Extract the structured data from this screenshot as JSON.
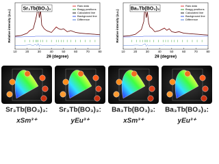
{
  "chart_data": [
    {
      "type": "line",
      "title": "Sr₃Tb(BO₃)₃",
      "x_label": "2θ (degree)",
      "y_label": "Relative intensity (a.u.)",
      "xlim": [
        10,
        80
      ],
      "xticks": [
        10,
        20,
        30,
        40,
        50,
        60,
        70,
        80
      ],
      "ylim": [
        -0.25,
        1
      ],
      "x": [
        10,
        15,
        20,
        22,
        25,
        27,
        28,
        29,
        30,
        31,
        32,
        34,
        36,
        40,
        44,
        46,
        48,
        50,
        53,
        56,
        60,
        64,
        68,
        72,
        76,
        80
      ],
      "series": [
        {
          "name": "Raw data",
          "color": "#e03030",
          "values": [
            0.1,
            0.12,
            0.18,
            0.25,
            0.3,
            0.55,
            0.7,
            0.95,
            0.6,
            0.8,
            0.4,
            0.3,
            0.25,
            0.2,
            0.35,
            0.3,
            0.28,
            0.3,
            0.22,
            0.25,
            0.2,
            0.18,
            0.17,
            0.16,
            0.15,
            0.14
          ]
        },
        {
          "name": "Calculated line",
          "color": "#111111",
          "values": [
            0.1,
            0.12,
            0.18,
            0.24,
            0.3,
            0.54,
            0.7,
            0.93,
            0.6,
            0.79,
            0.4,
            0.3,
            0.25,
            0.2,
            0.34,
            0.3,
            0.28,
            0.3,
            0.22,
            0.25,
            0.2,
            0.18,
            0.17,
            0.16,
            0.15,
            0.14
          ]
        },
        {
          "name": "Background line",
          "color": "#3050e0",
          "values": [
            0.08,
            0.08,
            0.09,
            0.09,
            0.09,
            0.1,
            0.1,
            0.1,
            0.1,
            0.1,
            0.1,
            0.1,
            0.1,
            0.1,
            0.1,
            0.1,
            0.1,
            0.1,
            0.1,
            0.1,
            0.1,
            0.1,
            0.1,
            0.1,
            0.1,
            0.1
          ]
        },
        {
          "name": "Difference",
          "color": "#4a7ad8",
          "values": [
            -0.15,
            -0.15,
            -0.14,
            -0.13,
            -0.15,
            -0.12,
            -0.16,
            -0.1,
            -0.17,
            -0.13,
            -0.15,
            -0.15,
            -0.15,
            -0.15,
            -0.14,
            -0.15,
            -0.15,
            -0.15,
            -0.15,
            -0.15,
            -0.15,
            -0.15,
            -0.15,
            -0.15,
            -0.15,
            -0.15
          ]
        }
      ],
      "bragg": {
        "name": "Bragg positions",
        "color": "#2a9a2a",
        "x": [
          18,
          22,
          25,
          27,
          28,
          29,
          31,
          33,
          36,
          40,
          44,
          46,
          48,
          50,
          53,
          56,
          60,
          64,
          68,
          72,
          76
        ]
      }
    },
    {
      "type": "line",
      "title": "Ba₃Tb(BO₃)₃",
      "x_label": "2θ (degree)",
      "y_label": "Relative intensity (a.u.)",
      "xlim": [
        10,
        80
      ],
      "xticks": [
        10,
        20,
        30,
        40,
        50,
        60,
        70,
        80
      ],
      "ylim": [
        -0.25,
        1
      ],
      "x": [
        10,
        15,
        20,
        22,
        25,
        27,
        28,
        29,
        30,
        31,
        32,
        34,
        36,
        40,
        44,
        46,
        48,
        50,
        53,
        56,
        60,
        64,
        68,
        72,
        76,
        80
      ],
      "series": [
        {
          "name": "Raw data",
          "color": "#e03030",
          "values": [
            0.1,
            0.11,
            0.15,
            0.2,
            0.28,
            0.5,
            0.95,
            0.6,
            0.75,
            0.45,
            0.35,
            0.3,
            0.22,
            0.25,
            0.32,
            0.26,
            0.3,
            0.22,
            0.2,
            0.22,
            0.18,
            0.17,
            0.16,
            0.15,
            0.14,
            0.13
          ]
        },
        {
          "name": "Calculated line",
          "color": "#111111",
          "values": [
            0.1,
            0.11,
            0.15,
            0.2,
            0.28,
            0.49,
            0.93,
            0.6,
            0.74,
            0.45,
            0.35,
            0.3,
            0.22,
            0.25,
            0.31,
            0.26,
            0.3,
            0.22,
            0.2,
            0.22,
            0.18,
            0.17,
            0.16,
            0.15,
            0.14,
            0.13
          ]
        },
        {
          "name": "Background line",
          "color": "#3050e0",
          "values": [
            0.08,
            0.08,
            0.09,
            0.09,
            0.09,
            0.1,
            0.1,
            0.1,
            0.1,
            0.1,
            0.1,
            0.1,
            0.1,
            0.1,
            0.1,
            0.1,
            0.1,
            0.1,
            0.1,
            0.1,
            0.1,
            0.1,
            0.1,
            0.1,
            0.1,
            0.1
          ]
        },
        {
          "name": "Difference",
          "color": "#4a7ad8",
          "values": [
            -0.15,
            -0.15,
            -0.14,
            -0.14,
            -0.15,
            -0.13,
            -0.1,
            -0.17,
            -0.13,
            -0.16,
            -0.15,
            -0.15,
            -0.15,
            -0.15,
            -0.14,
            -0.15,
            -0.15,
            -0.15,
            -0.15,
            -0.15,
            -0.15,
            -0.15,
            -0.15,
            -0.15,
            -0.15,
            -0.15
          ]
        }
      ],
      "bragg": {
        "name": "Bragg positions",
        "color": "#2a9a2a",
        "x": [
          17,
          21,
          24,
          26,
          28,
          29,
          30,
          32,
          35,
          39,
          43,
          45,
          47,
          50,
          52,
          55,
          59,
          63,
          67,
          71,
          75
        ]
      }
    }
  ],
  "panels": [
    {
      "line1": "Sr₃Tb(BO₃)₃:",
      "line2": "xSm³⁺"
    },
    {
      "line1": "Sr₃Tb(BO₃)₃:",
      "line2": "yEu³⁺"
    },
    {
      "line1": "Ba₃Tb(BO₃)₃:",
      "line2": "xSm³⁺"
    },
    {
      "line1": "Ba₃Tb(BO₃)₃:",
      "line2": "yEu³⁺"
    }
  ]
}
